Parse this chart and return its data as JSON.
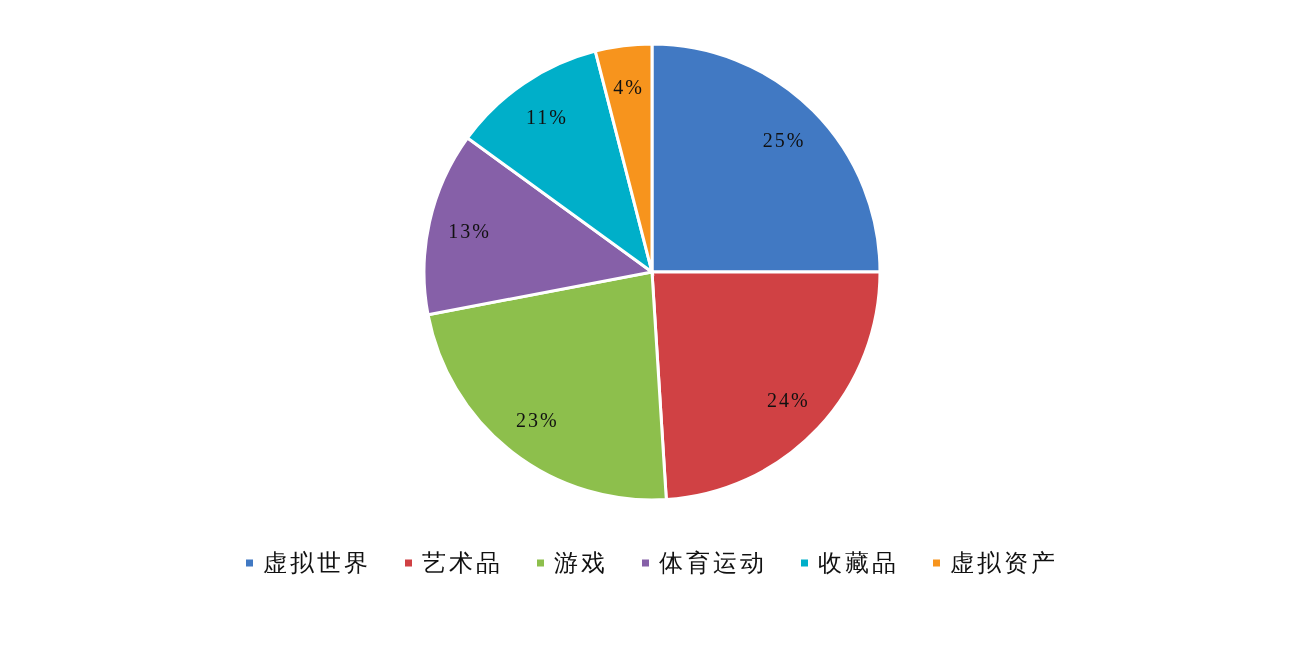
{
  "chart_data": {
    "type": "pie",
    "categories": [
      "虚拟世界",
      "艺术品",
      "游戏",
      "体育运动",
      "收藏品",
      "虚拟资产"
    ],
    "values": [
      25,
      24,
      23,
      13,
      11,
      4
    ],
    "colors": [
      "#4179c3",
      "#d04144",
      "#8dbf4c",
      "#8660a8",
      "#00afc9",
      "#f7941d"
    ],
    "value_labels": [
      "25%",
      "24%",
      "23%",
      "13%",
      "11%",
      "4%"
    ],
    "legend": "bottom"
  }
}
